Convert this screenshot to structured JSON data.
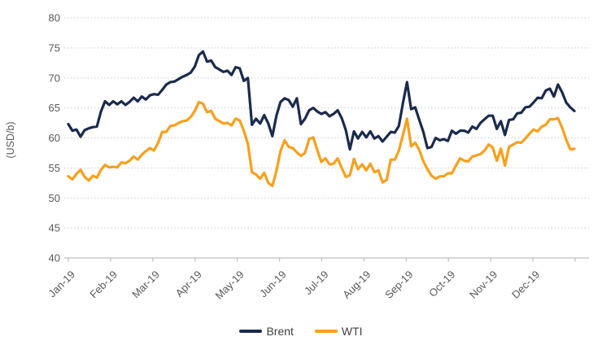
{
  "chart_data": {
    "type": "line",
    "title": "",
    "ylabel": "(USD/b)",
    "ylim": [
      40,
      80
    ],
    "ytick_step": 5,
    "ytick_labels": [
      "40",
      "45",
      "50",
      "55",
      "60",
      "65",
      "70",
      "75",
      "80"
    ],
    "x_tick_labels": [
      "Jan-19",
      "Feb-19",
      "Mar-19",
      "Apr-19",
      "May-19",
      "Jun-19",
      "Jul-19",
      "Aug-19",
      "Sep-19",
      "Oct-19",
      "Nov-19",
      "Dec-19"
    ],
    "grid": "horizontal-dotted",
    "legend_position": "bottom-center",
    "colors": {
      "grid": "#c9c9c9",
      "axis": "#bfbfbf",
      "tick_text": "#595959",
      "legend_text": "#404040",
      "background": "#ffffff"
    },
    "series": [
      {
        "name": "Brent",
        "color": "#1b2b4d",
        "values": [
          62.3,
          61.2,
          61.4,
          60.2,
          61.3,
          61.6,
          61.8,
          61.9,
          64.4,
          66.1,
          65.5,
          66.1,
          65.6,
          66.1,
          65.5,
          66.0,
          66.7,
          66.1,
          66.9,
          66.4,
          67.1,
          67.3,
          67.2,
          68.0,
          68.9,
          69.3,
          69.4,
          69.8,
          70.2,
          70.5,
          70.9,
          71.9,
          73.8,
          74.4,
          72.7,
          72.9,
          71.8,
          71.4,
          71.0,
          71.2,
          70.5,
          71.8,
          71.6,
          69.5,
          70.0,
          62.2,
          63.2,
          62.4,
          63.8,
          62.4,
          60.3,
          63.7,
          66.0,
          66.6,
          66.3,
          65.2,
          66.6,
          62.3,
          63.2,
          64.6,
          65.0,
          64.4,
          64.0,
          64.3,
          63.6,
          64.0,
          64.6,
          63.3,
          61.3,
          58.1,
          61.1,
          59.9,
          61.0,
          60.1,
          61.1,
          59.9,
          60.3,
          59.4,
          60.2,
          61.0,
          60.9,
          62.0,
          65.8,
          69.3,
          64.8,
          65.1,
          63.0,
          61.0,
          58.3,
          58.5,
          60.0,
          59.6,
          59.8,
          59.5,
          61.2,
          60.7,
          61.2,
          61.2,
          60.9,
          61.9,
          61.5,
          62.5,
          63.1,
          63.7,
          63.7,
          61.5,
          62.8,
          60.5,
          63.0,
          63.1,
          64.1,
          64.2,
          65.1,
          65.2,
          65.9,
          66.7,
          66.6,
          67.9,
          68.2,
          66.9,
          68.9,
          67.6,
          65.9,
          65.1,
          64.5
        ]
      },
      {
        "name": "WTI",
        "color": "#f7a01c",
        "values": [
          53.6,
          53.1,
          54.0,
          54.7,
          53.5,
          52.9,
          53.7,
          53.4,
          54.7,
          55.5,
          55.1,
          55.2,
          55.1,
          55.9,
          55.8,
          56.2,
          56.9,
          56.4,
          57.2,
          57.8,
          58.3,
          57.9,
          59.2,
          61.0,
          61.0,
          62.0,
          62.1,
          62.5,
          62.8,
          62.9,
          63.5,
          64.5,
          66.0,
          65.7,
          64.3,
          64.5,
          63.2,
          62.8,
          62.4,
          62.5,
          62.1,
          63.2,
          62.9,
          61.2,
          59.0,
          54.3,
          53.9,
          53.2,
          54.2,
          52.5,
          52.0,
          54.5,
          57.8,
          59.6,
          58.5,
          58.3,
          57.6,
          57.0,
          57.5,
          59.8,
          60.1,
          58.0,
          56.0,
          56.6,
          55.6,
          55.7,
          56.6,
          55.0,
          53.5,
          53.8,
          56.5,
          54.8,
          55.6,
          54.6,
          55.7,
          54.3,
          54.6,
          52.6,
          53.0,
          56.4,
          56.4,
          57.9,
          60.5,
          63.2,
          58.6,
          59.2,
          58.0,
          56.1,
          54.8,
          53.7,
          53.2,
          53.6,
          53.6,
          54.1,
          54.1,
          55.4,
          56.6,
          56.2,
          56.1,
          56.9,
          57.1,
          57.3,
          57.9,
          58.9,
          58.4,
          56.2,
          58.2,
          55.4,
          58.5,
          58.9,
          59.3,
          59.2,
          59.9,
          60.7,
          61.4,
          61.1,
          61.9,
          62.2,
          63.1,
          63.1,
          63.3,
          61.7,
          59.7,
          58.1,
          58.2
        ]
      }
    ]
  },
  "legend": {
    "brent_label": "Brent",
    "wti_label": "WTI"
  }
}
